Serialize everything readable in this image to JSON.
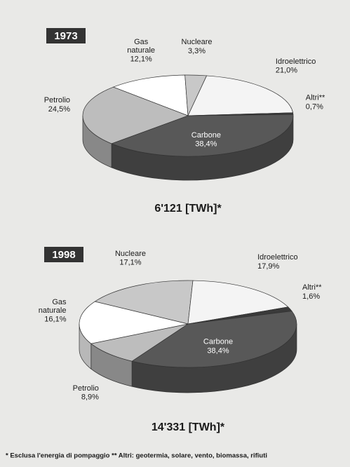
{
  "chart_data": [
    {
      "type": "pie",
      "title": "1973",
      "subtitle": "6'121 [TWh]*",
      "categories": [
        "Gas\nnaturale",
        "Nucleare",
        "Idroelettrico",
        "Altri**",
        "Carbone",
        "Petrolio"
      ],
      "values": [
        12.1,
        3.3,
        21.0,
        0.7,
        38.4,
        24.5
      ],
      "value_labels": [
        "12,1%",
        "3,3%",
        "21,0%",
        "0,7%",
        "38,4%",
        "24,5%"
      ],
      "colors": [
        "#ffffff",
        "#c8c8c8",
        "#f4f4f4",
        "#3a3a3a",
        "#585858",
        "#bdbdbd"
      ]
    },
    {
      "type": "pie",
      "title": "1998",
      "subtitle": "14'331 [TWh]*",
      "categories": [
        "Nucleare",
        "Idroelettrico",
        "Altri**",
        "Carbone",
        "Petrolio",
        "Gas\nnaturale"
      ],
      "values": [
        17.1,
        17.9,
        1.6,
        38.4,
        8.9,
        16.1
      ],
      "value_labels": [
        "17,1%",
        "17,9%",
        "1,6%",
        "38,4%",
        "8,9%",
        "16,1%"
      ],
      "colors": [
        "#c8c8c8",
        "#f4f4f4",
        "#3a3a3a",
        "#585858",
        "#bdbdbd",
        "#ffffff"
      ]
    }
  ],
  "footnote": "*  Esclusa l'energia di pompaggio   ** Altri: geotermia, solare, vento, biomassa, rifiuti"
}
